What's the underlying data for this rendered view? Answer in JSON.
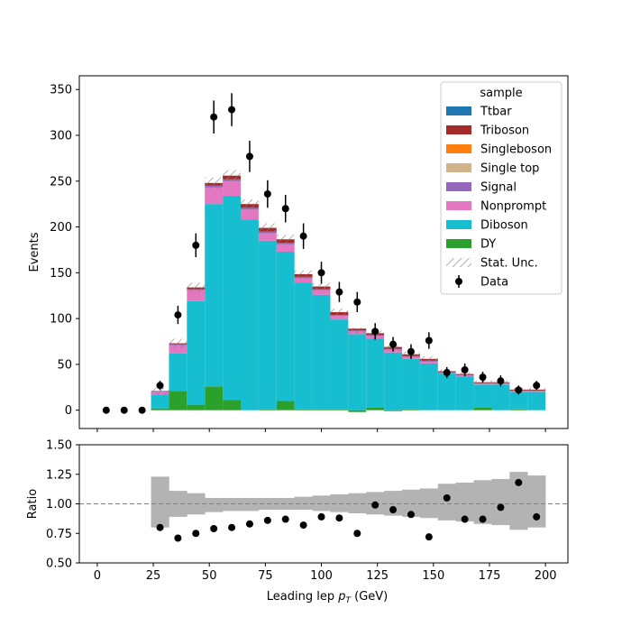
{
  "chart_data": [
    {
      "type": "bar",
      "stacked": true,
      "histogram": true,
      "bin_edges": [
        0,
        8,
        16,
        24,
        32,
        40,
        48,
        56,
        64,
        72,
        80,
        88,
        96,
        104,
        112,
        120,
        128,
        136,
        144,
        152,
        160,
        168,
        176,
        184,
        192,
        200
      ],
      "ylabel": "Events",
      "xlim": [
        -8,
        210
      ],
      "ylim": [
        -20,
        365
      ],
      "yticks": [
        0,
        50,
        100,
        150,
        200,
        250,
        300,
        350
      ],
      "grid": false,
      "legend": {
        "title": "sample",
        "location": "upper right"
      },
      "series": [
        {
          "name": "DY",
          "color": "#2ca02c",
          "values": [
            0,
            0,
            0,
            2,
            21,
            6,
            26,
            11,
            0,
            1,
            10,
            1,
            1,
            1,
            -2,
            3,
            -1,
            1,
            0,
            0,
            0,
            3,
            0,
            1,
            0
          ]
        },
        {
          "name": "Diboson",
          "color": "#17becf",
          "values": [
            0,
            0,
            0,
            15,
            41,
            113,
            199,
            223,
            208,
            184,
            163,
            138,
            125,
            98,
            83,
            75,
            63,
            55,
            51,
            40,
            37,
            25,
            28,
            19,
            20
          ]
        },
        {
          "name": "Nonprompt",
          "color": "#e377c2",
          "values": [
            0,
            0,
            0,
            3,
            9,
            12,
            18,
            16,
            11,
            8,
            8,
            5,
            5,
            4,
            3,
            3,
            3,
            2,
            2,
            1,
            1,
            1,
            1,
            1,
            1
          ]
        },
        {
          "name": "Signal",
          "color": "#9467bd",
          "values": [
            0,
            0,
            0,
            0.5,
            1,
            1,
            2,
            2,
            2,
            2,
            1.5,
            1.5,
            1,
            1,
            1,
            1,
            1,
            1,
            1,
            0.5,
            0.5,
            0.5,
            0.5,
            0.5,
            0.5
          ]
        },
        {
          "name": "Single top",
          "color": "#d2b48c",
          "values": [
            0,
            0,
            0,
            0,
            0,
            0,
            0,
            0,
            0,
            0,
            0,
            0,
            0,
            0,
            0,
            0,
            0,
            0,
            0,
            0,
            0,
            0,
            0,
            0,
            0
          ]
        },
        {
          "name": "Singleboson",
          "color": "#ff7f0e",
          "values": [
            0,
            0,
            0,
            0,
            0,
            0,
            0,
            0,
            0,
            0,
            0,
            0,
            0,
            0,
            0,
            0,
            0,
            0,
            0,
            0,
            0,
            0,
            0,
            0,
            0
          ]
        },
        {
          "name": "Triboson",
          "color": "#a52a2a",
          "values": [
            0,
            0,
            0,
            0.5,
            1,
            2,
            3,
            4,
            4,
            4,
            4,
            3,
            3,
            3,
            2,
            2,
            2,
            2,
            2,
            1,
            1,
            1,
            1,
            1,
            1
          ]
        },
        {
          "name": "Ttbar",
          "color": "#1f77b4",
          "values": [
            0,
            0,
            0,
            0,
            0,
            0,
            0,
            0,
            0,
            0,
            0,
            0,
            0,
            0,
            0,
            0,
            0,
            0,
            0,
            0,
            0,
            0,
            0,
            0,
            0
          ]
        }
      ],
      "stat_unc": {
        "name": "Stat. Unc.",
        "values": [
          0,
          0,
          0,
          4,
          5,
          5,
          6,
          6,
          5,
          5,
          5,
          4,
          4,
          4,
          3,
          3,
          3,
          3,
          3,
          2,
          2,
          2,
          2,
          2,
          2
        ]
      },
      "data": {
        "name": "Data",
        "x": [
          4,
          12,
          20,
          28,
          36,
          44,
          52,
          60,
          68,
          76,
          84,
          92,
          100,
          108,
          116,
          124,
          132,
          140,
          148,
          156,
          164,
          172,
          180,
          188,
          196
        ],
        "y": [
          0,
          0,
          0,
          27,
          104,
          180,
          320,
          328,
          277,
          236,
          220,
          190,
          150,
          129,
          118,
          86,
          72,
          64,
          76,
          41,
          44,
          36,
          32,
          22,
          27
        ],
        "yerr": [
          0,
          0,
          0,
          5,
          10,
          13,
          18,
          18,
          17,
          15,
          15,
          14,
          12,
          11,
          11,
          9,
          8,
          8,
          9,
          6,
          7,
          6,
          6,
          5,
          5
        ]
      }
    },
    {
      "type": "scatter",
      "xlabel_prefix": "Leading lep ",
      "xlabel_symbol": "p",
      "xlabel_sub": "T",
      "xlabel_suffix": " (GeV)",
      "ylabel": "Ratio",
      "xlim": [
        -8,
        210
      ],
      "ylim": [
        0.5,
        1.5
      ],
      "xticks": [
        0,
        25,
        50,
        75,
        100,
        125,
        150,
        175,
        200
      ],
      "yticks": [
        "0.50",
        "0.75",
        "1.00",
        "1.25",
        "1.50"
      ],
      "reference_line": 1.0,
      "band": {
        "bin_edges": [
          24,
          32,
          40,
          48,
          56,
          64,
          72,
          80,
          88,
          96,
          104,
          112,
          120,
          128,
          136,
          144,
          152,
          160,
          168,
          176,
          184,
          192,
          200
        ],
        "low": [
          0.8,
          0.89,
          0.91,
          0.93,
          0.94,
          0.94,
          0.95,
          0.95,
          0.95,
          0.94,
          0.93,
          0.92,
          0.91,
          0.9,
          0.89,
          0.88,
          0.86,
          0.85,
          0.83,
          0.82,
          0.78,
          0.8
        ],
        "high": [
          1.23,
          1.11,
          1.09,
          1.05,
          1.05,
          1.05,
          1.05,
          1.05,
          1.06,
          1.07,
          1.08,
          1.09,
          1.1,
          1.11,
          1.12,
          1.13,
          1.17,
          1.18,
          1.2,
          1.21,
          1.27,
          1.24
        ],
        "color": "#b3b3b3"
      },
      "points": {
        "x": [
          28,
          36,
          44,
          52,
          60,
          68,
          76,
          84,
          92,
          100,
          108,
          116,
          124,
          132,
          140,
          148,
          156,
          164,
          172,
          180,
          188,
          196
        ],
        "y": [
          0.8,
          0.71,
          0.75,
          0.79,
          0.8,
          0.83,
          0.86,
          0.87,
          0.82,
          0.89,
          0.88,
          0.75,
          0.99,
          0.95,
          0.91,
          0.72,
          1.05,
          0.87,
          0.87,
          0.97,
          1.18,
          0.89
        ]
      }
    }
  ]
}
